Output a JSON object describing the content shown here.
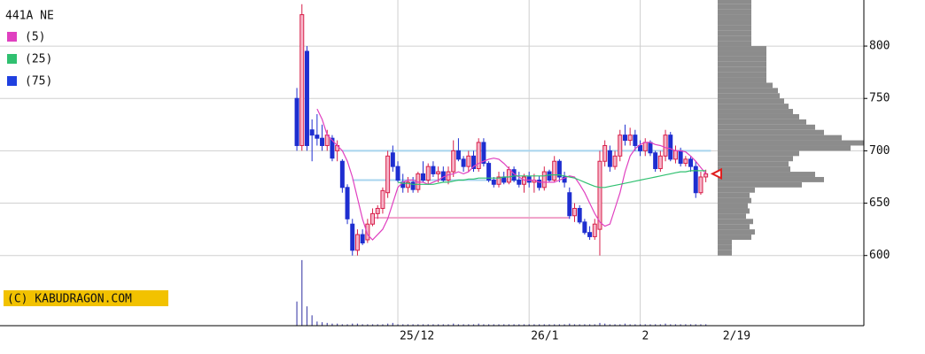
{
  "chart_data": {
    "type": "candlestick",
    "title": "441A NE",
    "watermark": "(C) KABUDRAGON.COM",
    "ylim": [
      533,
      844
    ],
    "yticks": [
      600,
      650,
      700,
      750,
      800
    ],
    "xlim": [
      -58.8,
      112.3
    ],
    "xticks": [
      {
        "value": 20,
        "label": "25/12"
      },
      {
        "value": 46,
        "label": "26/1"
      },
      {
        "value": 68,
        "label": "2"
      }
    ],
    "last_date": {
      "value": 84,
      "label": "2/19"
    },
    "grid": true,
    "up_color": "#d8204a",
    "up_fill": "#f6b4c8",
    "down_color": "#1e2ed0",
    "marker_color": "#e02020",
    "candles": {
      "open": [
        750,
        705,
        795,
        720,
        715,
        712,
        705,
        712,
        700,
        690,
        665,
        630,
        605,
        620,
        615,
        630,
        640,
        645,
        660,
        698,
        685,
        670,
        665,
        670,
        663,
        678,
        672,
        685,
        678,
        680,
        672,
        680,
        700,
        692,
        685,
        695,
        683,
        708,
        688,
        672,
        668,
        675,
        670,
        682,
        672,
        668,
        675,
        670,
        672,
        665,
        680,
        672,
        690,
        675,
        660,
        638,
        645,
        632,
        622,
        618,
        625,
        690,
        700,
        685,
        695,
        715,
        710,
        715,
        705,
        700,
        708,
        698,
        683,
        695,
        715,
        692,
        700,
        688,
        692,
        685,
        660,
        675
      ],
      "high": [
        760,
        840,
        800,
        730,
        735,
        725,
        720,
        715,
        710,
        692,
        668,
        635,
        625,
        625,
        635,
        645,
        648,
        665,
        700,
        705,
        690,
        678,
        675,
        675,
        680,
        690,
        688,
        690,
        685,
        685,
        685,
        710,
        712,
        695,
        700,
        700,
        712,
        712,
        690,
        675,
        680,
        680,
        685,
        685,
        680,
        678,
        680,
        678,
        676,
        685,
        682,
        695,
        692,
        680,
        665,
        650,
        648,
        635,
        628,
        635,
        700,
        710,
        705,
        700,
        720,
        725,
        722,
        720,
        710,
        712,
        710,
        700,
        700,
        720,
        718,
        705,
        703,
        695,
        695,
        690,
        680,
        682
      ],
      "low": [
        700,
        700,
        700,
        690,
        705,
        700,
        700,
        690,
        690,
        660,
        630,
        600,
        600,
        610,
        612,
        628,
        635,
        640,
        655,
        680,
        670,
        660,
        660,
        660,
        660,
        670,
        668,
        675,
        670,
        670,
        668,
        675,
        690,
        680,
        680,
        680,
        680,
        685,
        670,
        665,
        665,
        668,
        668,
        670,
        665,
        660,
        665,
        660,
        662,
        662,
        670,
        670,
        670,
        665,
        635,
        632,
        630,
        620,
        615,
        615,
        600,
        685,
        680,
        682,
        690,
        705,
        705,
        700,
        695,
        695,
        695,
        680,
        680,
        690,
        690,
        688,
        685,
        685,
        680,
        655,
        658,
        670
      ],
      "close": [
        705,
        830,
        705,
        715,
        712,
        705,
        715,
        693,
        705,
        665,
        635,
        605,
        620,
        612,
        630,
        640,
        645,
        662,
        695,
        685,
        672,
        665,
        670,
        663,
        678,
        672,
        685,
        678,
        680,
        672,
        680,
        700,
        692,
        685,
        695,
        683,
        708,
        688,
        672,
        668,
        675,
        670,
        682,
        672,
        668,
        675,
        670,
        672,
        665,
        680,
        672,
        690,
        675,
        670,
        638,
        645,
        632,
        622,
        618,
        630,
        690,
        705,
        685,
        695,
        715,
        710,
        715,
        705,
        700,
        708,
        698,
        683,
        695,
        715,
        692,
        700,
        688,
        692,
        685,
        660,
        675,
        678
      ]
    },
    "series": [
      {
        "name": "(5)",
        "color": "#e040c0",
        "values": [
          null,
          null,
          null,
          null,
          740,
          730,
          715,
          710,
          705,
          700,
          690,
          675,
          655,
          635,
          620,
          615,
          620,
          625,
          635,
          650,
          665,
          670,
          672,
          672,
          670,
          670,
          668,
          670,
          672,
          675,
          677,
          678,
          680,
          678,
          680,
          685,
          688,
          690,
          692,
          693,
          692,
          688,
          683,
          678,
          675,
          672,
          672,
          672,
          670,
          670,
          670,
          670,
          672,
          674,
          676,
          675,
          668,
          660,
          650,
          640,
          632,
          628,
          630,
          645,
          660,
          680,
          695,
          702,
          706,
          708,
          708,
          706,
          705,
          703,
          702,
          700,
          700,
          699,
          695,
          690,
          684,
          678
        ]
      },
      {
        "name": "(25)",
        "color": "#30c070",
        "values": [
          null,
          null,
          null,
          null,
          null,
          null,
          null,
          null,
          null,
          null,
          null,
          null,
          null,
          null,
          null,
          null,
          null,
          null,
          null,
          null,
          670,
          669,
          669,
          668,
          668,
          668,
          668,
          668,
          669,
          670,
          670,
          671,
          672,
          672,
          673,
          673,
          674,
          674,
          674,
          674,
          674,
          675,
          675,
          676,
          676,
          676,
          676,
          676,
          676,
          676,
          677,
          677,
          677,
          676,
          675,
          674,
          672,
          670,
          668,
          666,
          665,
          665,
          666,
          667,
          668,
          669,
          670,
          671,
          672,
          673,
          674,
          675,
          676,
          677,
          678,
          679,
          680,
          680,
          681,
          681,
          681,
          681
        ]
      },
      {
        "name": "(75)",
        "color": "#2040e0",
        "values": [
          null,
          null,
          null,
          null,
          null,
          null,
          null,
          null,
          null,
          null,
          null,
          null,
          null,
          null,
          null,
          null,
          null,
          null,
          null,
          null,
          null,
          null,
          null,
          null,
          null,
          null,
          null,
          null,
          null,
          null,
          null,
          null,
          null,
          null,
          null,
          null,
          null,
          null,
          null,
          null,
          null,
          null,
          null,
          null,
          null,
          null,
          null,
          null,
          null,
          null,
          null,
          null,
          null,
          null,
          null,
          null,
          null,
          null,
          null,
          null,
          null,
          null,
          null,
          null,
          null,
          null,
          null,
          null,
          null,
          null,
          null,
          null,
          null,
          null,
          null,
          null,
          null,
          null,
          null,
          null,
          null,
          null
        ]
      }
    ],
    "volume": {
      "color": "#5050b0",
      "vlim": [
        0,
        100
      ],
      "values": [
        35,
        95,
        28,
        15,
        6,
        5,
        4,
        3,
        3,
        2,
        2,
        3,
        3,
        2,
        2,
        2,
        2,
        2,
        3,
        4,
        2,
        2,
        2,
        2,
        2,
        2,
        2,
        2,
        2,
        2,
        2,
        3,
        2,
        2,
        2,
        2,
        3,
        2,
        2,
        2,
        2,
        2,
        2,
        2,
        2,
        2,
        2,
        2,
        2,
        2,
        2,
        2,
        2,
        2,
        3,
        2,
        2,
        2,
        2,
        2,
        4,
        3,
        2,
        2,
        2,
        3,
        2,
        2,
        2,
        2,
        2,
        2,
        2,
        3,
        2,
        2,
        2,
        2,
        2,
        2,
        2,
        2
      ]
    },
    "profile": {
      "color": "#8c8c8c",
      "xlim": [
        0,
        165
      ],
      "bins": [
        600,
        605,
        610,
        615,
        620,
        625,
        630,
        635,
        640,
        645,
        650,
        655,
        660,
        665,
        670,
        675,
        680,
        685,
        690,
        695,
        700,
        705,
        710,
        715,
        720,
        725,
        730,
        735,
        740,
        745,
        750,
        755,
        760,
        765,
        770,
        775,
        780,
        785,
        790,
        795,
        800,
        805,
        810,
        815,
        820,
        825,
        830,
        835,
        840,
        845
      ],
      "values": [
        16,
        16,
        16,
        38,
        42,
        36,
        40,
        32,
        36,
        34,
        38,
        36,
        42,
        95,
        120,
        110,
        82,
        80,
        85,
        92,
        150,
        165,
        140,
        120,
        110,
        100,
        92,
        85,
        80,
        75,
        70,
        68,
        62,
        55,
        55,
        55,
        55,
        55,
        55,
        55,
        38,
        38,
        38,
        38,
        38,
        38,
        38,
        38,
        38
      ]
    },
    "levels": [
      {
        "value": 700,
        "color": "#a8d4ee",
        "from": 9,
        "to": 82
      },
      {
        "value": 672,
        "color": "#a8d4ee",
        "from": 11,
        "to": 45
      },
      {
        "value": 636,
        "color": "#f0a0c8",
        "from": 15,
        "to": 54
      }
    ]
  }
}
